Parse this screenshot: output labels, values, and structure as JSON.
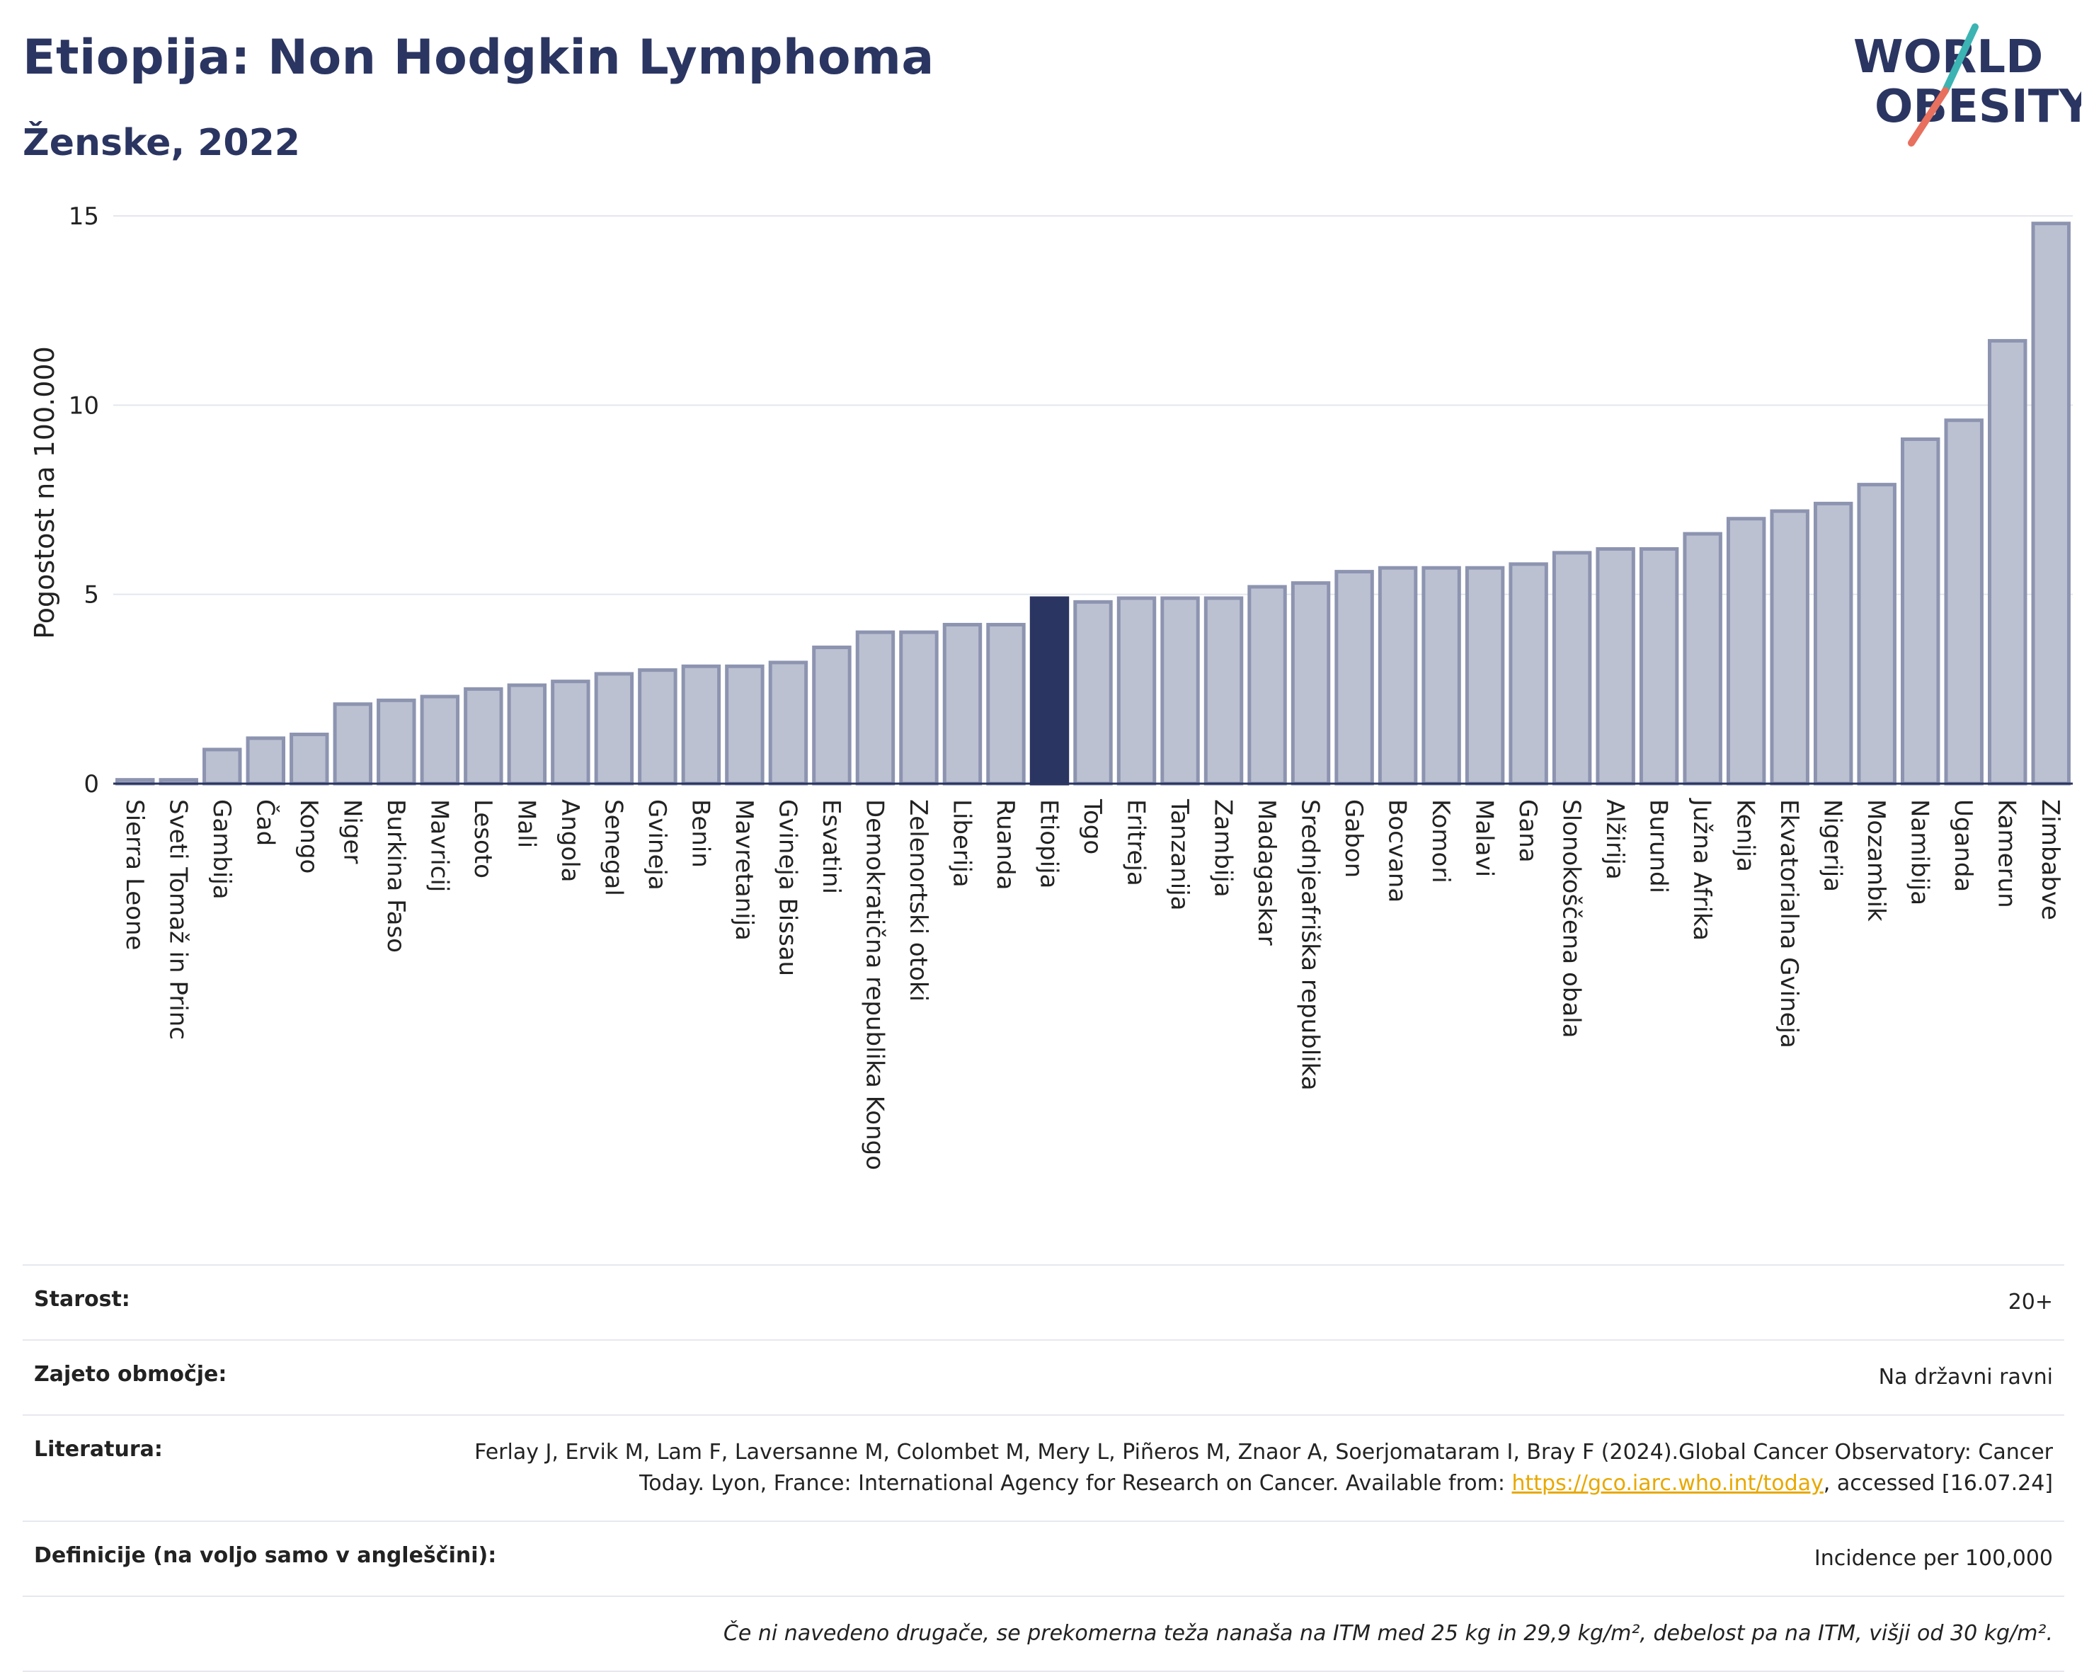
{
  "header": {
    "title": "Etiopija: Non Hodgkin Lymphoma",
    "subtitle": "Ženske, 2022",
    "logo_text_top": "WORLD",
    "logo_text_bottom": "OBESITY"
  },
  "colors": {
    "bar_fill": "#bcc1d2",
    "bar_stroke": "#8d94b0",
    "highlight": "#2b3561",
    "title": "#2b3561",
    "link": "#e8a800",
    "logo_teal": "#3bb4b3",
    "logo_coral": "#e8705e"
  },
  "chart_data": {
    "type": "bar",
    "ylabel": "Pogostost na 100.000",
    "xlabel": "",
    "ylim": [
      0,
      15
    ],
    "yticks": [
      0,
      5,
      10,
      15
    ],
    "grid": true,
    "highlight": "Etiopija",
    "categories": [
      "Sierra Leone",
      "Sveti Tomaž in Princ",
      "Gambija",
      "Čad",
      "Kongo",
      "Niger",
      "Burkina Faso",
      "Mavricij",
      "Lesoto",
      "Mali",
      "Angola",
      "Senegal",
      "Gvineja",
      "Benin",
      "Mavretanija",
      "Gvineja Bissau",
      "Esvatini",
      "Demokratična republika Kongo",
      "Zelenortski otoki",
      "Liberija",
      "Ruanda",
      "Etiopija",
      "Togo",
      "Eritreja",
      "Tanzanija",
      "Zambija",
      "Madagaskar",
      "Srednjeafriška republika",
      "Gabon",
      "Bocvana",
      "Komori",
      "Malavi",
      "Gana",
      "Slonokoščena obala",
      "Alžirija",
      "Burundi",
      "Južna Afrika",
      "Kenija",
      "Ekvatorialna Gvineja",
      "Nigerija",
      "Mozambik",
      "Namibija",
      "Uganda",
      "Kamerun",
      "Zimbabve"
    ],
    "values": [
      0.1,
      0.1,
      0.9,
      1.2,
      1.3,
      2.1,
      2.2,
      2.3,
      2.5,
      2.6,
      2.7,
      2.9,
      3.0,
      3.1,
      3.1,
      3.2,
      3.6,
      4.0,
      4.0,
      4.2,
      4.2,
      4.9,
      4.8,
      4.9,
      4.9,
      4.9,
      5.2,
      5.3,
      5.6,
      5.7,
      5.7,
      5.7,
      5.8,
      6.1,
      6.2,
      6.2,
      6.6,
      7.0,
      7.2,
      7.4,
      7.9,
      9.1,
      9.6,
      11.7,
      14.8
    ]
  },
  "info": {
    "age_label": "Starost:",
    "age_value": "20+",
    "coverage_label": "Zajeto območje:",
    "coverage_value": "Na državni ravni",
    "literature_label": "Literatura:",
    "literature_text": "Ferlay J, Ervik M, Lam F, Laversanne M, Colombet M, Mery L, Piñeros M, Znaor A, Soerjomataram I, Bray F (2024).Global Cancer Observatory: Cancer Today. Lyon, France: International Agency for Research on Cancer. Available from: ",
    "literature_link": "https://gco.iarc.who.int/today",
    "literature_suffix": ", accessed [16.07.24]",
    "definitions_label": "Definicije (na voljo samo v angleščini):",
    "definitions_value": "Incidence per 100,000",
    "note": "Če ni navedeno drugače, se prekomerna teža nanaša na ITM med 25 kg in 29,9 kg/m², debelost pa na ITM, višji od 30 kg/m²."
  }
}
